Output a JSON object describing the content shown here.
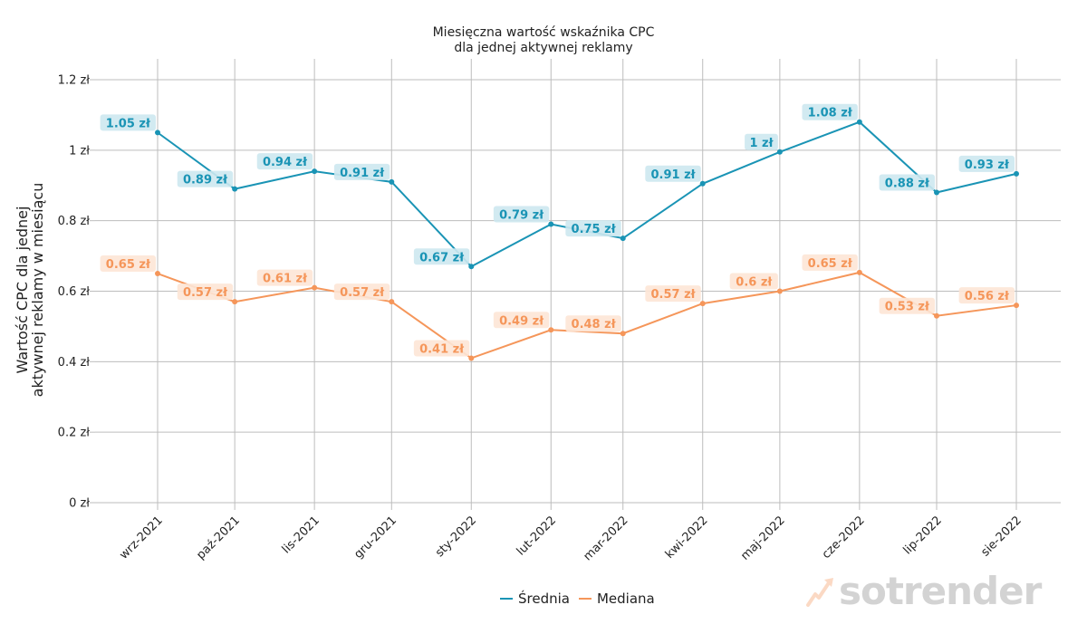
{
  "chart_data": {
    "type": "line",
    "title": "Miesięczna wartość wskaźnika CPC\ndla jednej aktywnej reklamy",
    "title_lines": [
      "Miesięczna wartość wskaźnika CPC",
      "dla jednej aktywnej reklamy"
    ],
    "xlabel": "",
    "ylabel_lines": [
      "Wartość CPC dla jednej",
      "aktywnej reklamy w miesiącu"
    ],
    "ylim": [
      0,
      1.2
    ],
    "yticks": [
      0,
      0.2,
      0.4,
      0.6,
      0.8,
      1,
      1.2
    ],
    "ytick_labels": [
      "0 zł",
      "0.2 zł",
      "0.4 zł",
      "0.6 zł",
      "0.8 zł",
      "1 zł",
      "1.2 zł"
    ],
    "categories": [
      "wrz-2021",
      "paź-2021",
      "lis-2021",
      "gru-2021",
      "sty-2022",
      "lut-2022",
      "mar-2022",
      "kwi-2022",
      "maj-2022",
      "cze-2022",
      "lip-2022",
      "sie-2022"
    ],
    "dates": [
      "2021-09-01",
      "2021-10-01",
      "2021-11-01",
      "2021-12-01",
      "2022-01-01",
      "2022-02-01",
      "2022-03-01",
      "2022-04-01",
      "2022-05-01",
      "2022-06-01",
      "2022-07-01",
      "2022-08-01"
    ],
    "grid": true,
    "legend_position": "bottom-center",
    "series": [
      {
        "name": "Średnia",
        "color": "#1a94b5",
        "label_bg": "#cde8f0",
        "values": [
          1.05,
          0.89,
          0.94,
          0.91,
          0.67,
          0.79,
          0.75,
          0.905,
          0.995,
          1.08,
          0.88,
          0.933
        ],
        "labels": [
          "1.05 zł",
          "0.89 zł",
          "0.94 zł",
          "0.91 zł",
          "0.67 zł",
          "0.79 zł",
          "0.75 zł",
          "0.91 zł",
          "1 zł",
          "1.08 zł",
          "0.88 zł",
          "0.93 zł"
        ]
      },
      {
        "name": "Mediana",
        "color": "#f5965a",
        "label_bg": "#fde5d6",
        "values": [
          0.65,
          0.57,
          0.61,
          0.57,
          0.41,
          0.49,
          0.48,
          0.565,
          0.6,
          0.653,
          0.53,
          0.56
        ],
        "labels": [
          "0.65 zł",
          "0.57 zł",
          "0.61 zł",
          "0.57 zł",
          "0.41 zł",
          "0.49 zł",
          "0.48 zł",
          "0.57 zł",
          "0.6 zł",
          "0.65 zł",
          "0.53 zł",
          "0.56 zł"
        ]
      }
    ]
  },
  "legend": {
    "items": [
      {
        "label": "Średnia",
        "color": "#1a94b5"
      },
      {
        "label": "Mediana",
        "color": "#f5965a"
      }
    ]
  },
  "branding": {
    "logo_text": "sotrender"
  }
}
